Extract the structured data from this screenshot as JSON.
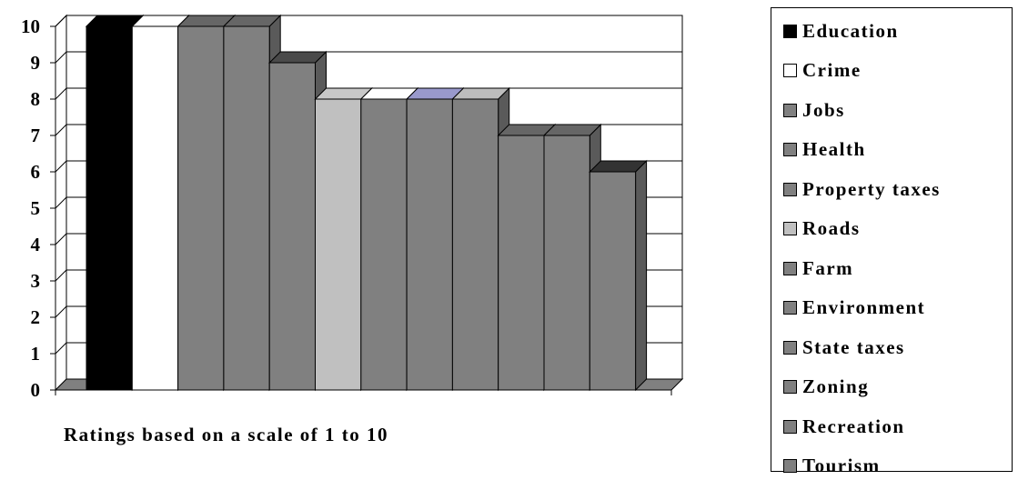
{
  "chart_data": {
    "type": "bar",
    "style": "3d-column",
    "categories": [
      "Education",
      "Crime",
      "Jobs",
      "Health",
      "Property taxes",
      "Roads",
      "Farm",
      "Environment",
      "State taxes",
      "Zoning",
      "Recreation",
      "Tourism"
    ],
    "values": [
      10,
      10,
      10,
      10,
      9,
      8,
      8,
      8,
      8,
      7,
      7,
      6
    ],
    "colors": [
      "#000000",
      "#ffffff",
      "#808080",
      "#808080",
      "#808080",
      "#c0c0c0",
      "#808080",
      "#808080",
      "#808080",
      "#808080",
      "#808080",
      "#808080"
    ],
    "top_colors": [
      "#000000",
      "#ffffff",
      "#666666",
      "#666666",
      "#4a4a4a",
      "#c8c8c8",
      "#ffffff",
      "#9999cc",
      "#bdbdbd",
      "#666666",
      "#666666",
      "#333333"
    ],
    "yticks": [
      "0",
      "1",
      "2",
      "3",
      "4",
      "5",
      "6",
      "7",
      "8",
      "9",
      "10"
    ],
    "ylim": [
      0,
      10
    ],
    "xlabel": "Ratings based on a scale of 1 to 10",
    "ylabel": "",
    "title": "",
    "grid": true,
    "legend_position": "right"
  }
}
